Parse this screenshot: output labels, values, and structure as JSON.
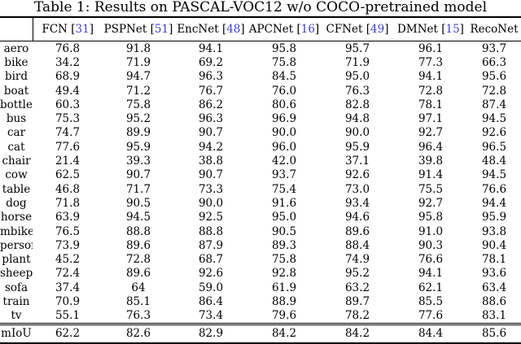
{
  "title": "Table 1: Results on PASCAL-VOC12 w/o COCO-pretrained model",
  "colors": {
    "cite": "#3e3ed2",
    "text": "#000000",
    "background": "#ffffff"
  },
  "table": {
    "cite_brackets": [
      "[",
      "]"
    ],
    "corner_label": "",
    "columns": [
      {
        "label": "FCN",
        "cite": "31"
      },
      {
        "label": "PSPNet",
        "cite": "51"
      },
      {
        "label": "EncNet",
        "cite": "48"
      },
      {
        "label": "APCNet",
        "cite": "16"
      },
      {
        "label": "CFNet",
        "cite": "49"
      },
      {
        "label": "DMNet",
        "cite": "15"
      },
      {
        "label": "RecoNet",
        "cite": null
      }
    ],
    "rows": [
      {
        "label": "aero",
        "values": [
          "76.8",
          "91.8",
          "94.1",
          "95.8",
          "95.7",
          "96.1",
          "93.7"
        ],
        "bold": 5
      },
      {
        "label": "bike",
        "values": [
          "34.2",
          "71.9",
          "69.2",
          "75.8",
          "71.9",
          "77.3",
          "66.3"
        ],
        "bold": 5
      },
      {
        "label": "bird",
        "values": [
          "68.9",
          "94.7",
          "96.3",
          "84.5",
          "95.0",
          "94.1",
          "95.6"
        ],
        "bold": 2
      },
      {
        "label": "boat",
        "values": [
          "49.4",
          "71.2",
          "76.7",
          "76.0",
          "76.3",
          "72.8",
          "72.8"
        ],
        "bold": 2
      },
      {
        "label": "bottle",
        "values": [
          "60.3",
          "75.8",
          "86.2",
          "80.6",
          "82.8",
          "78.1",
          "87.4"
        ],
        "bold": 6
      },
      {
        "label": "bus",
        "values": [
          "75.3",
          "95.2",
          "96.3",
          "96.9",
          "94.8",
          "97.1",
          "94.5"
        ],
        "bold": 5
      },
      {
        "label": "car",
        "values": [
          "74.7",
          "89.9",
          "90.7",
          "90.0",
          "90.0",
          "92.7",
          "92.6"
        ],
        "bold": 5
      },
      {
        "label": "cat",
        "values": [
          "77.6",
          "95.9",
          "94.2",
          "96.0",
          "95.9",
          "96.4",
          "96.5"
        ],
        "bold": 6
      },
      {
        "label": "chair",
        "values": [
          "21.4",
          "39.3",
          "38.8",
          "42.0",
          "37.1",
          "39.8",
          "48.4"
        ],
        "bold": 6
      },
      {
        "label": "cow",
        "values": [
          "62.5",
          "90.7",
          "90.7",
          "93.7",
          "92.6",
          "91.4",
          "94.5"
        ],
        "bold": 6
      },
      {
        "label": "table",
        "values": [
          "46.8",
          "71.7",
          "73.3",
          "75.4",
          "73.0",
          "75.5",
          "76.6"
        ],
        "bold": 6
      },
      {
        "label": "dog",
        "values": [
          "71.8",
          "90.5",
          "90.0",
          "91.6",
          "93.4",
          "92.7",
          "94.4"
        ],
        "bold": 6
      },
      {
        "label": "horse",
        "values": [
          "63.9",
          "94.5",
          "92.5",
          "95.0",
          "94.6",
          "95.8",
          "95.9"
        ],
        "bold": 6
      },
      {
        "label": "mbike",
        "values": [
          "76.5",
          "88.8",
          "88.8",
          "90.5",
          "89.6",
          "91.0",
          "93.8"
        ],
        "bold": 6
      },
      {
        "label": "person",
        "values": [
          "73.9",
          "89.6",
          "87.9",
          "89.3",
          "88.4",
          "90.3",
          "90.4"
        ],
        "bold": 6
      },
      {
        "label": "plant",
        "values": [
          "45.2",
          "72.8",
          "68.7",
          "75.8",
          "74.9",
          "76.6",
          "78.1"
        ],
        "bold": 6
      },
      {
        "label": "sheep",
        "values": [
          "72.4",
          "89.6",
          "92.6",
          "92.8",
          "95.2",
          "94.1",
          "93.6"
        ],
        "bold": 4
      },
      {
        "label": "sofa",
        "values": [
          "37.4",
          "64",
          "59.0",
          "61.9",
          "63.2",
          "62.1",
          "63.4"
        ],
        "bold": 1
      },
      {
        "label": "train",
        "values": [
          "70.9",
          "85.1",
          "86.4",
          "88.9",
          "89.7",
          "85.5",
          "88.6"
        ],
        "bold": 4
      },
      {
        "label": "tv",
        "values": [
          "55.1",
          "76.3",
          "73.4",
          "79.6",
          "78.2",
          "77.6",
          "83.1"
        ],
        "bold": 6
      }
    ],
    "footer": {
      "label": "mIoU",
      "values": [
        "62.2",
        "82.6",
        "82.9",
        "84.2",
        "84.2",
        "84.4",
        "85.6"
      ],
      "bold": 6
    }
  }
}
